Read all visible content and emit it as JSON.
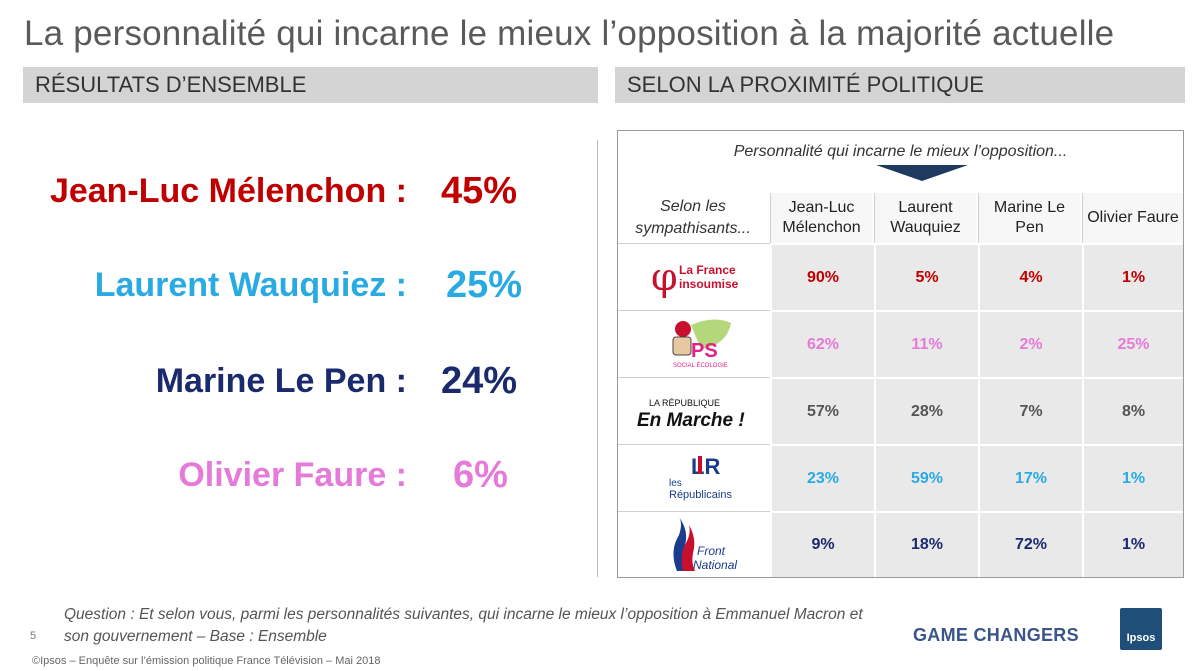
{
  "title": "La personnalité qui incarne le mieux l’opposition à la majorité actuelle",
  "sections": {
    "left": "RÉSULTATS D’ENSEMBLE",
    "right": "SELON LA PROXIMITÉ POLITIQUE"
  },
  "overall": [
    {
      "name": "Jean-Luc Mélenchon :",
      "value": "45%",
      "color": "#c00000"
    },
    {
      "name": "Laurent Wauquiez :",
      "value": "25%",
      "color": "#29abe2"
    },
    {
      "name": "Marine Le Pen :",
      "value": "24%",
      "color": "#1a2a6c"
    },
    {
      "name": "Olivier Faure :",
      "value": "6%",
      "color": "#e67ad9"
    }
  ],
  "table": {
    "caption": "Personnalité qui incarne le mieux l’opposition...",
    "corner": "Selon les sympathisants...",
    "columns": [
      "Jean-Luc Mélenchon",
      "Laurent Wauquiez",
      "Marine Le Pen",
      "Olivier Faure"
    ],
    "rows": [
      {
        "party_logo": "la-france-insoumise-logo",
        "logo_text": [
          "La France",
          "insoumise"
        ],
        "values": [
          "90%",
          "5%",
          "4%",
          "1%"
        ],
        "color": "#c00000"
      },
      {
        "party_logo": "ps-logo",
        "logo_text": [
          "PS",
          "SOCIAL ÉCOLOGIE"
        ],
        "values": [
          "62%",
          "11%",
          "2%",
          "25%"
        ],
        "color": "#e67ad9"
      },
      {
        "party_logo": "en-marche-logo",
        "logo_text": [
          "LA RÉPUBLIQUE",
          "En Marche !"
        ],
        "values": [
          "57%",
          "28%",
          "7%",
          "8%"
        ],
        "color": "#555555"
      },
      {
        "party_logo": "les-republicains-logo",
        "logo_text": [
          "LR",
          "les",
          "Républicains"
        ],
        "values": [
          "23%",
          "59%",
          "17%",
          "1%"
        ],
        "color": "#29abe2"
      },
      {
        "party_logo": "front-national-logo",
        "logo_text": [
          "Front",
          "National"
        ],
        "values": [
          "9%",
          "18%",
          "72%",
          "1%"
        ],
        "color": "#1a2a6c"
      }
    ]
  },
  "footer": {
    "question": "Question : Et selon vous, parmi les personnalités suivantes, qui incarne le mieux l’opposition à Emmanuel Macron et son gouvernement – Base : Ensemble",
    "page_number": "5",
    "copyright": "©Ipsos – Enquête sur l’émission politique France Télévision – Mai 2018",
    "brand": "GAME CHANGERS",
    "logo_text": "Ipsos"
  }
}
